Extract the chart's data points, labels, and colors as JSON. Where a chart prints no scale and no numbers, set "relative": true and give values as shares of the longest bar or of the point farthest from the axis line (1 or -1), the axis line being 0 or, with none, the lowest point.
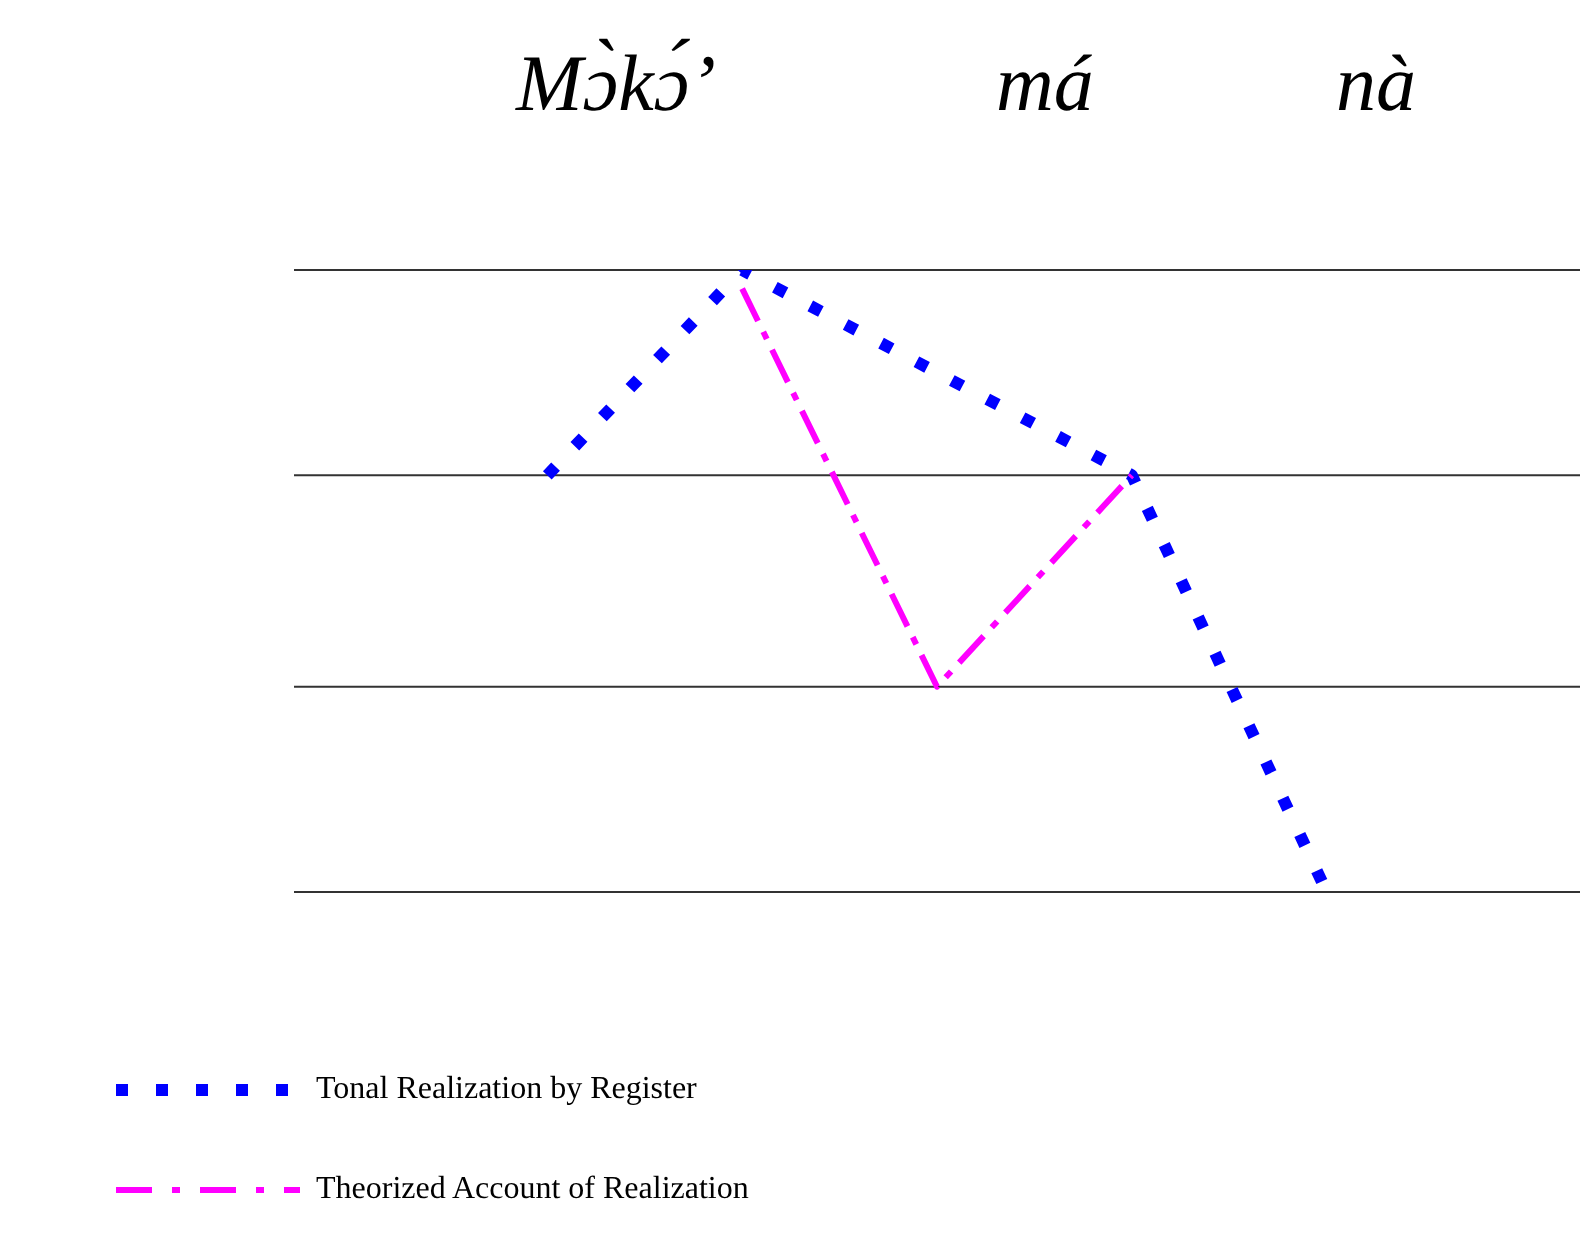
{
  "chart_data": {
    "type": "line",
    "relative": true,
    "legend": "bottom left",
    "annotations": [
      "Mɔ̀kɔ́’",
      "má",
      "nà"
    ],
    "categories": [
      null,
      null,
      null,
      null,
      null
    ],
    "ref_lines": [
      {
        "axis": "y",
        "value": 1,
        "color": "#333333"
      },
      {
        "axis": "y",
        "value": 0.67,
        "color": "#333333"
      },
      {
        "axis": "y",
        "value": 0.33,
        "color": "#333333"
      },
      {
        "axis": "y",
        "value": 0,
        "color": "#333333"
      }
    ],
    "series": [
      {
        "name": "Tonal Realization by Register",
        "color": "#0000ff",
        "line_style": "dotted",
        "values": [
          0.67,
          1,
          null,
          0.67,
          0
        ]
      },
      {
        "name": "Theorized Account of Realization",
        "color": "#ff00ff",
        "line_style": "dashed",
        "values": [
          null,
          0.97,
          0.33,
          0.67,
          null
        ]
      }
    ]
  }
}
